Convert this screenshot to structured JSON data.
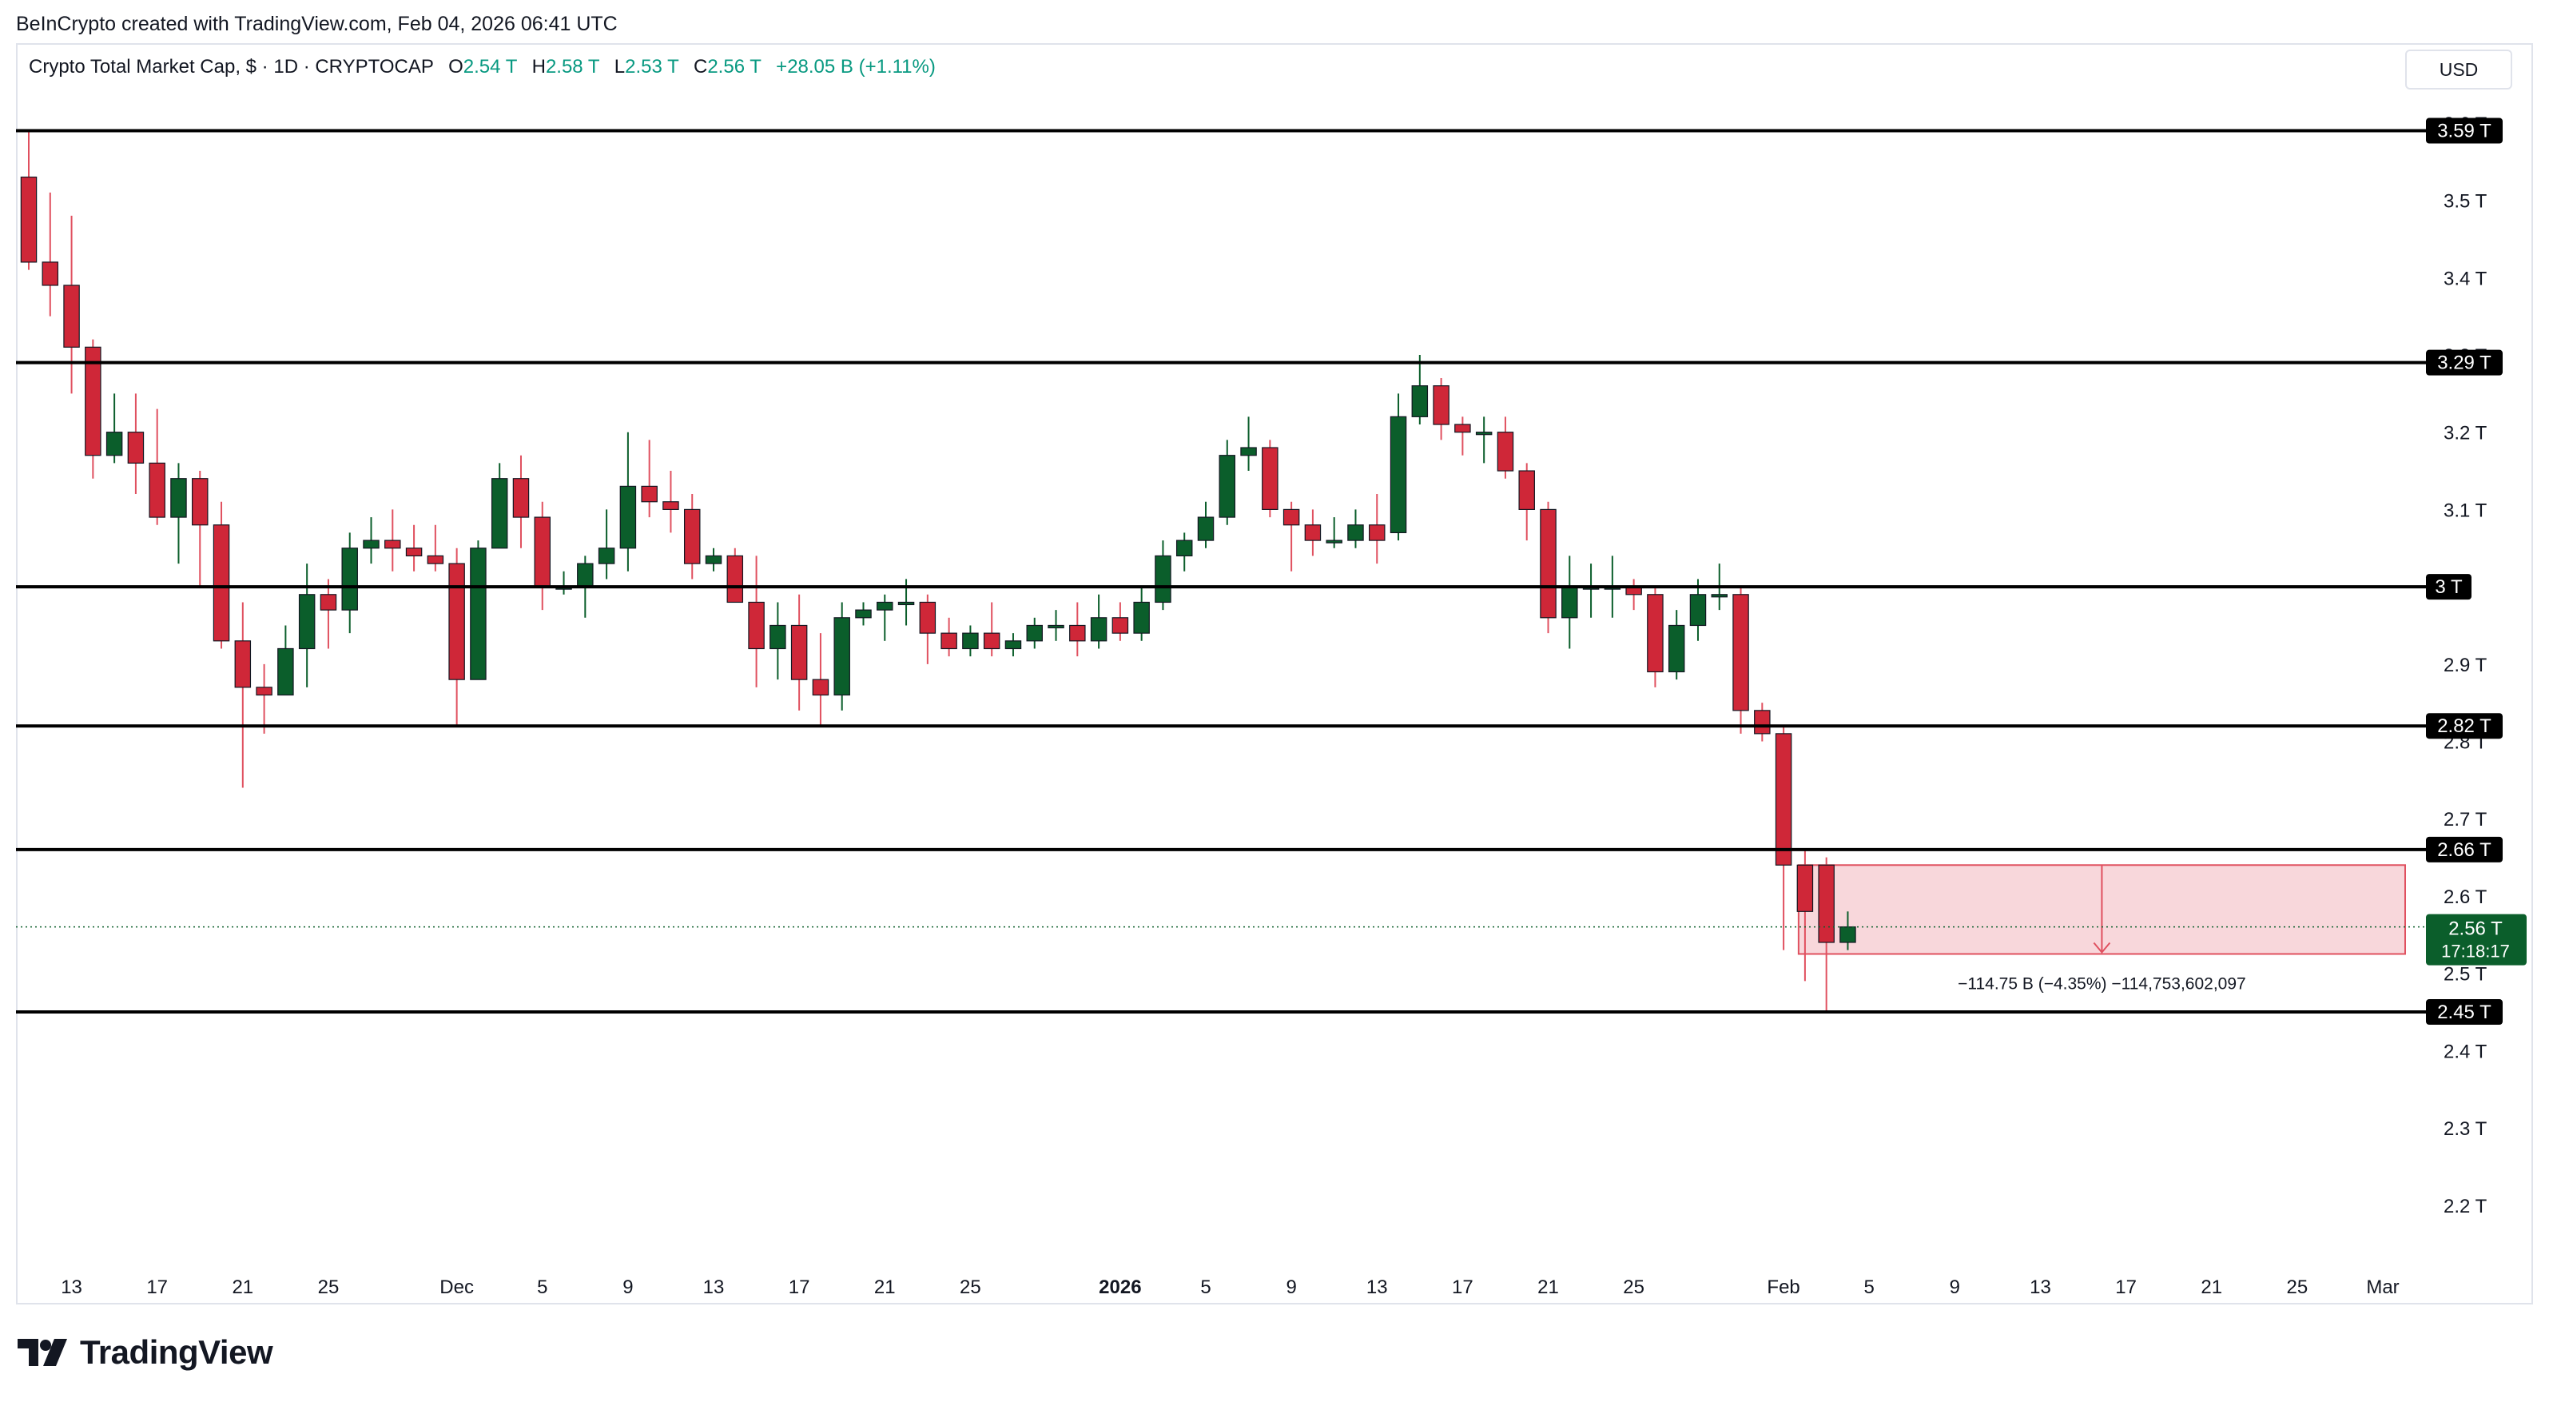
{
  "header": {
    "credit": "BeInCrypto created with TradingView.com, Feb 04, 2026 06:41 UTC",
    "symbol": "Crypto Total Market Cap, $ · 1D · CRYPTOCAP",
    "open_label": "O",
    "open": "2.54 T",
    "high_label": "H",
    "high": "2.58 T",
    "low_label": "L",
    "low": "2.53 T",
    "close_label": "C",
    "close": "2.56 T",
    "change": "+28.05 B (+1.11%)",
    "currency_button": "USD"
  },
  "footer": {
    "brand": "TradingView"
  },
  "colors": {
    "up": "#0b5e2b",
    "down": "#cf2738",
    "wick_up": "#0b5e2b",
    "wick_down": "#e0505f",
    "level_line": "#000000",
    "range_fill": "#f6c9cf",
    "range_border": "#e0505f",
    "price_line": "#0b5e2b",
    "axis_text": "#131722"
  },
  "chart_data": {
    "type": "candlestick",
    "title": "Crypto Total Market Cap, $ · 1D · CRYPTOCAP",
    "ylabel": "",
    "xlabel": "",
    "ylim": [
      2.115,
      3.635
    ],
    "x_start": "2025-11-11",
    "x_end": "2026-03-01",
    "y_ticks": [
      "2.2 T",
      "2.3 T",
      "2.4 T",
      "2.5 T",
      "2.6 T",
      "2.7 T",
      "2.8 T",
      "2.9 T",
      "3 T",
      "3.1 T",
      "3.2 T",
      "3.3 T",
      "3.4 T",
      "3.5 T",
      "3.6 T"
    ],
    "y_tick_values": [
      2.2,
      2.3,
      2.4,
      2.5,
      2.6,
      2.7,
      2.8,
      2.9,
      3.0,
      3.1,
      3.2,
      3.3,
      3.4,
      3.5,
      3.6
    ],
    "x_ticks": [
      {
        "label": "13",
        "date": "2025-11-13"
      },
      {
        "label": "17",
        "date": "2025-11-17"
      },
      {
        "label": "21",
        "date": "2025-11-21"
      },
      {
        "label": "25",
        "date": "2025-11-25"
      },
      {
        "label": "Dec",
        "date": "2025-12-01"
      },
      {
        "label": "5",
        "date": "2025-12-05"
      },
      {
        "label": "9",
        "date": "2025-12-09"
      },
      {
        "label": "13",
        "date": "2025-12-13"
      },
      {
        "label": "17",
        "date": "2025-12-17"
      },
      {
        "label": "21",
        "date": "2025-12-21"
      },
      {
        "label": "25",
        "date": "2025-12-25"
      },
      {
        "label": "2026",
        "date": "2026-01-01",
        "bold": true
      },
      {
        "label": "5",
        "date": "2026-01-05"
      },
      {
        "label": "9",
        "date": "2026-01-09"
      },
      {
        "label": "13",
        "date": "2026-01-13"
      },
      {
        "label": "17",
        "date": "2026-01-17"
      },
      {
        "label": "21",
        "date": "2026-01-21"
      },
      {
        "label": "25",
        "date": "2026-01-25"
      },
      {
        "label": "Feb",
        "date": "2026-02-01"
      },
      {
        "label": "5",
        "date": "2026-02-05"
      },
      {
        "label": "9",
        "date": "2026-02-09"
      },
      {
        "label": "13",
        "date": "2026-02-13"
      },
      {
        "label": "17",
        "date": "2026-02-17"
      },
      {
        "label": "21",
        "date": "2026-02-21"
      },
      {
        "label": "25",
        "date": "2026-02-25"
      },
      {
        "label": "Mar",
        "date": "2026-03-01"
      }
    ],
    "levels": [
      {
        "label": "3.59 T",
        "value": 3.59
      },
      {
        "label": "3.29 T",
        "value": 3.29
      },
      {
        "label": "3 T",
        "value": 3.0
      },
      {
        "label": "2.82 T",
        "value": 2.82
      },
      {
        "label": "2.66 T",
        "value": 2.66
      },
      {
        "label": "2.45 T",
        "value": 2.45
      }
    ],
    "last_price": {
      "label": "2.56 T",
      "countdown": "17:18:17",
      "value": 2.56
    },
    "measure": {
      "label": "−114.75 B (−4.35%) −114,753,602,097",
      "from_date": "2026-02-02",
      "to_date": "2026-03-01",
      "top": 2.64,
      "bottom": 2.525
    },
    "candles": [
      {
        "d": "2025-11-11",
        "o": 3.53,
        "h": 3.59,
        "l": 3.41,
        "c": 3.42
      },
      {
        "d": "2025-11-12",
        "o": 3.42,
        "h": 3.51,
        "l": 3.35,
        "c": 3.39
      },
      {
        "d": "2025-11-13",
        "o": 3.39,
        "h": 3.48,
        "l": 3.25,
        "c": 3.31
      },
      {
        "d": "2025-11-14",
        "o": 3.31,
        "h": 3.32,
        "l": 3.14,
        "c": 3.17
      },
      {
        "d": "2025-11-15",
        "o": 3.17,
        "h": 3.25,
        "l": 3.16,
        "c": 3.2
      },
      {
        "d": "2025-11-16",
        "o": 3.2,
        "h": 3.25,
        "l": 3.12,
        "c": 3.16
      },
      {
        "d": "2025-11-17",
        "o": 3.16,
        "h": 3.23,
        "l": 3.08,
        "c": 3.09
      },
      {
        "d": "2025-11-18",
        "o": 3.09,
        "h": 3.16,
        "l": 3.03,
        "c": 3.14
      },
      {
        "d": "2025-11-19",
        "o": 3.14,
        "h": 3.15,
        "l": 3.0,
        "c": 3.08
      },
      {
        "d": "2025-11-20",
        "o": 3.08,
        "h": 3.11,
        "l": 2.92,
        "c": 2.93
      },
      {
        "d": "2025-11-21",
        "o": 2.93,
        "h": 2.98,
        "l": 2.74,
        "c": 2.87
      },
      {
        "d": "2025-11-22",
        "o": 2.87,
        "h": 2.9,
        "l": 2.81,
        "c": 2.86
      },
      {
        "d": "2025-11-23",
        "o": 2.86,
        "h": 2.95,
        "l": 2.86,
        "c": 2.92
      },
      {
        "d": "2025-11-24",
        "o": 2.92,
        "h": 3.03,
        "l": 2.87,
        "c": 2.99
      },
      {
        "d": "2025-11-25",
        "o": 2.99,
        "h": 3.01,
        "l": 2.92,
        "c": 2.97
      },
      {
        "d": "2025-11-26",
        "o": 2.97,
        "h": 3.07,
        "l": 2.94,
        "c": 3.05
      },
      {
        "d": "2025-11-27",
        "o": 3.05,
        "h": 3.09,
        "l": 3.03,
        "c": 3.06
      },
      {
        "d": "2025-11-28",
        "o": 3.06,
        "h": 3.1,
        "l": 3.02,
        "c": 3.05
      },
      {
        "d": "2025-11-29",
        "o": 3.05,
        "h": 3.08,
        "l": 3.02,
        "c": 3.04
      },
      {
        "d": "2025-11-30",
        "o": 3.04,
        "h": 3.08,
        "l": 3.02,
        "c": 3.03
      },
      {
        "d": "2025-12-01",
        "o": 3.03,
        "h": 3.05,
        "l": 2.82,
        "c": 2.88
      },
      {
        "d": "2025-12-02",
        "o": 2.88,
        "h": 3.06,
        "l": 2.88,
        "c": 3.05
      },
      {
        "d": "2025-12-03",
        "o": 3.05,
        "h": 3.16,
        "l": 3.05,
        "c": 3.14
      },
      {
        "d": "2025-12-04",
        "o": 3.14,
        "h": 3.17,
        "l": 3.05,
        "c": 3.09
      },
      {
        "d": "2025-12-05",
        "o": 3.09,
        "h": 3.11,
        "l": 2.97,
        "c": 3.0
      },
      {
        "d": "2025-12-06",
        "o": 3.0,
        "h": 3.02,
        "l": 2.99,
        "c": 3.0
      },
      {
        "d": "2025-12-07",
        "o": 3.0,
        "h": 3.04,
        "l": 2.96,
        "c": 3.03
      },
      {
        "d": "2025-12-08",
        "o": 3.03,
        "h": 3.1,
        "l": 3.01,
        "c": 3.05
      },
      {
        "d": "2025-12-09",
        "o": 3.05,
        "h": 3.2,
        "l": 3.02,
        "c": 3.13
      },
      {
        "d": "2025-12-10",
        "o": 3.13,
        "h": 3.19,
        "l": 3.09,
        "c": 3.11
      },
      {
        "d": "2025-12-11",
        "o": 3.11,
        "h": 3.15,
        "l": 3.07,
        "c": 3.1
      },
      {
        "d": "2025-12-12",
        "o": 3.1,
        "h": 3.12,
        "l": 3.01,
        "c": 3.03
      },
      {
        "d": "2025-12-13",
        "o": 3.03,
        "h": 3.05,
        "l": 3.02,
        "c": 3.04
      },
      {
        "d": "2025-12-14",
        "o": 3.04,
        "h": 3.05,
        "l": 2.98,
        "c": 2.98
      },
      {
        "d": "2025-12-15",
        "o": 2.98,
        "h": 3.04,
        "l": 2.87,
        "c": 2.92
      },
      {
        "d": "2025-12-16",
        "o": 2.92,
        "h": 2.98,
        "l": 2.88,
        "c": 2.95
      },
      {
        "d": "2025-12-17",
        "o": 2.95,
        "h": 2.99,
        "l": 2.84,
        "c": 2.88
      },
      {
        "d": "2025-12-18",
        "o": 2.88,
        "h": 2.94,
        "l": 2.82,
        "c": 2.86
      },
      {
        "d": "2025-12-19",
        "o": 2.86,
        "h": 2.98,
        "l": 2.84,
        "c": 2.96
      },
      {
        "d": "2025-12-20",
        "o": 2.96,
        "h": 2.98,
        "l": 2.95,
        "c": 2.97
      },
      {
        "d": "2025-12-21",
        "o": 2.97,
        "h": 2.99,
        "l": 2.93,
        "c": 2.98
      },
      {
        "d": "2025-12-22",
        "o": 2.98,
        "h": 3.01,
        "l": 2.95,
        "c": 2.98
      },
      {
        "d": "2025-12-23",
        "o": 2.98,
        "h": 2.99,
        "l": 2.9,
        "c": 2.94
      },
      {
        "d": "2025-12-24",
        "o": 2.94,
        "h": 2.96,
        "l": 2.91,
        "c": 2.92
      },
      {
        "d": "2025-12-25",
        "o": 2.92,
        "h": 2.95,
        "l": 2.91,
        "c": 2.94
      },
      {
        "d": "2025-12-26",
        "o": 2.94,
        "h": 2.98,
        "l": 2.91,
        "c": 2.92
      },
      {
        "d": "2025-12-27",
        "o": 2.92,
        "h": 2.94,
        "l": 2.91,
        "c": 2.93
      },
      {
        "d": "2025-12-28",
        "o": 2.93,
        "h": 2.96,
        "l": 2.92,
        "c": 2.95
      },
      {
        "d": "2025-12-29",
        "o": 2.95,
        "h": 2.97,
        "l": 2.93,
        "c": 2.95
      },
      {
        "d": "2025-12-30",
        "o": 2.95,
        "h": 2.98,
        "l": 2.91,
        "c": 2.93
      },
      {
        "d": "2025-12-31",
        "o": 2.93,
        "h": 2.99,
        "l": 2.92,
        "c": 2.96
      },
      {
        "d": "2026-01-01",
        "o": 2.96,
        "h": 2.98,
        "l": 2.93,
        "c": 2.94
      },
      {
        "d": "2026-01-02",
        "o": 2.94,
        "h": 3.0,
        "l": 2.93,
        "c": 2.98
      },
      {
        "d": "2026-01-03",
        "o": 2.98,
        "h": 3.06,
        "l": 2.97,
        "c": 3.04
      },
      {
        "d": "2026-01-04",
        "o": 3.04,
        "h": 3.07,
        "l": 3.02,
        "c": 3.06
      },
      {
        "d": "2026-01-05",
        "o": 3.06,
        "h": 3.11,
        "l": 3.05,
        "c": 3.09
      },
      {
        "d": "2026-01-06",
        "o": 3.09,
        "h": 3.19,
        "l": 3.08,
        "c": 3.17
      },
      {
        "d": "2026-01-07",
        "o": 3.17,
        "h": 3.22,
        "l": 3.15,
        "c": 3.18
      },
      {
        "d": "2026-01-08",
        "o": 3.18,
        "h": 3.19,
        "l": 3.09,
        "c": 3.1
      },
      {
        "d": "2026-01-09",
        "o": 3.1,
        "h": 3.11,
        "l": 3.02,
        "c": 3.08
      },
      {
        "d": "2026-01-10",
        "o": 3.08,
        "h": 3.1,
        "l": 3.04,
        "c": 3.06
      },
      {
        "d": "2026-01-11",
        "o": 3.06,
        "h": 3.09,
        "l": 3.05,
        "c": 3.06
      },
      {
        "d": "2026-01-12",
        "o": 3.06,
        "h": 3.1,
        "l": 3.05,
        "c": 3.08
      },
      {
        "d": "2026-01-13",
        "o": 3.08,
        "h": 3.12,
        "l": 3.03,
        "c": 3.06
      },
      {
        "d": "2026-01-14",
        "o": 3.07,
        "h": 3.25,
        "l": 3.06,
        "c": 3.22
      },
      {
        "d": "2026-01-15",
        "o": 3.22,
        "h": 3.3,
        "l": 3.21,
        "c": 3.26
      },
      {
        "d": "2026-01-16",
        "o": 3.26,
        "h": 3.27,
        "l": 3.19,
        "c": 3.21
      },
      {
        "d": "2026-01-17",
        "o": 3.21,
        "h": 3.22,
        "l": 3.17,
        "c": 3.2
      },
      {
        "d": "2026-01-18",
        "o": 3.2,
        "h": 3.22,
        "l": 3.16,
        "c": 3.2
      },
      {
        "d": "2026-01-19",
        "o": 3.2,
        "h": 3.22,
        "l": 3.14,
        "c": 3.15
      },
      {
        "d": "2026-01-20",
        "o": 3.15,
        "h": 3.16,
        "l": 3.06,
        "c": 3.1
      },
      {
        "d": "2026-01-21",
        "o": 3.1,
        "h": 3.11,
        "l": 2.94,
        "c": 2.96
      },
      {
        "d": "2026-01-22",
        "o": 2.96,
        "h": 3.04,
        "l": 2.92,
        "c": 3.0
      },
      {
        "d": "2026-01-23",
        "o": 3.0,
        "h": 3.03,
        "l": 2.96,
        "c": 3.0
      },
      {
        "d": "2026-01-24",
        "o": 3.0,
        "h": 3.04,
        "l": 2.96,
        "c": 3.0
      },
      {
        "d": "2026-01-25",
        "o": 3.0,
        "h": 3.01,
        "l": 2.97,
        "c": 2.99
      },
      {
        "d": "2026-01-26",
        "o": 2.99,
        "h": 3.0,
        "l": 2.87,
        "c": 2.89
      },
      {
        "d": "2026-01-27",
        "o": 2.89,
        "h": 2.97,
        "l": 2.88,
        "c": 2.95
      },
      {
        "d": "2026-01-28",
        "o": 2.95,
        "h": 3.01,
        "l": 2.93,
        "c": 2.99
      },
      {
        "d": "2026-01-29",
        "o": 2.99,
        "h": 3.03,
        "l": 2.97,
        "c": 2.99
      },
      {
        "d": "2026-01-30",
        "o": 2.99,
        "h": 3.0,
        "l": 2.81,
        "c": 2.84
      },
      {
        "d": "2026-01-31",
        "o": 2.84,
        "h": 2.85,
        "l": 2.8,
        "c": 2.81
      },
      {
        "d": "2026-02-01",
        "o": 2.81,
        "h": 2.82,
        "l": 2.53,
        "c": 2.64
      },
      {
        "d": "2026-02-02",
        "o": 2.64,
        "h": 2.66,
        "l": 2.49,
        "c": 2.58
      },
      {
        "d": "2026-02-03",
        "o": 2.64,
        "h": 2.65,
        "l": 2.45,
        "c": 2.54
      },
      {
        "d": "2026-02-04",
        "o": 2.54,
        "h": 2.58,
        "l": 2.53,
        "c": 2.56
      }
    ]
  }
}
